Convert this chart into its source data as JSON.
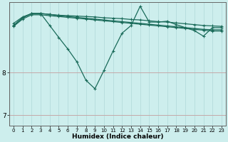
{
  "xlabel": "Humidex (Indice chaleur)",
  "bg_color": "#cdeeed",
  "grid_color_v": "#b8dede",
  "grid_color_h": "#c4a8a8",
  "line_color": "#1a6b5a",
  "xlim": [
    -0.5,
    23.5
  ],
  "ylim": [
    6.75,
    9.65
  ],
  "yticks": [
    7,
    8
  ],
  "xticks": [
    0,
    1,
    2,
    3,
    4,
    5,
    6,
    7,
    8,
    9,
    10,
    11,
    12,
    13,
    14,
    15,
    16,
    17,
    18,
    19,
    20,
    21,
    22,
    23
  ],
  "series": [
    [
      9.15,
      9.3,
      9.38,
      9.38,
      9.36,
      9.34,
      9.33,
      9.32,
      9.31,
      9.3,
      9.28,
      9.27,
      9.26,
      9.24,
      9.23,
      9.21,
      9.19,
      9.18,
      9.16,
      9.14,
      9.12,
      9.1,
      9.09,
      9.08
    ],
    [
      9.1,
      9.28,
      9.38,
      9.38,
      9.36,
      9.33,
      9.31,
      9.29,
      9.27,
      9.25,
      9.23,
      9.21,
      9.19,
      9.17,
      9.15,
      9.13,
      9.11,
      9.09,
      9.07,
      9.05,
      9.03,
      9.01,
      9.0,
      9.0
    ],
    [
      9.08,
      9.25,
      9.35,
      9.35,
      9.33,
      9.31,
      9.29,
      9.27,
      9.25,
      9.23,
      9.21,
      9.19,
      9.17,
      9.15,
      9.13,
      9.11,
      9.09,
      9.07,
      9.05,
      9.03,
      9.01,
      8.99,
      8.97,
      8.97
    ],
    [
      9.1,
      9.28,
      9.38,
      9.38,
      9.1,
      8.82,
      8.55,
      8.25,
      7.82,
      7.62,
      8.05,
      8.5,
      8.92,
      9.1,
      9.55,
      9.18,
      9.18,
      9.2,
      9.12,
      9.05,
      8.98,
      8.85,
      9.05,
      9.05
    ]
  ],
  "marker": "+",
  "markersize": 3.5,
  "linewidth": 0.9,
  "tick_fontsize": 5.0,
  "xlabel_fontsize": 6.5
}
